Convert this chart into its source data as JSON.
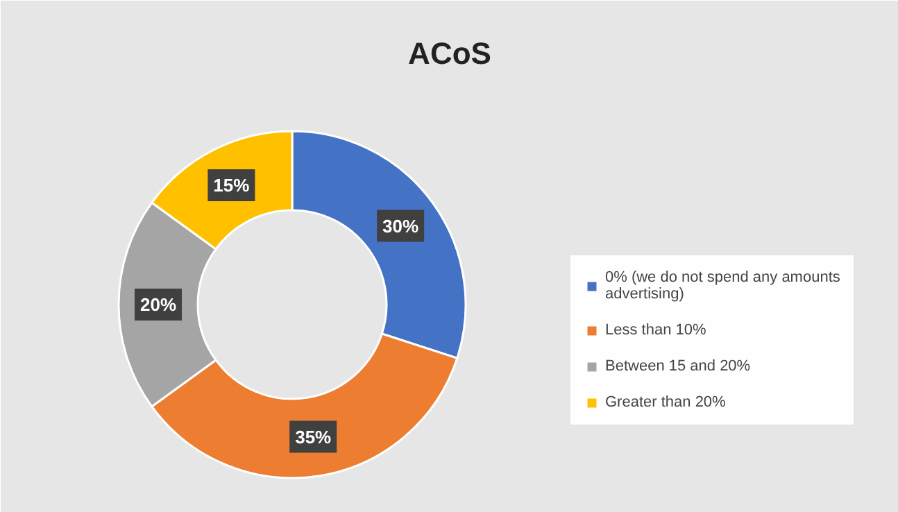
{
  "chart_data": {
    "type": "donut",
    "title": "ACoS",
    "categories": [
      "0% (we do not spend any amounts advertising)",
      "Less than 10%",
      "Between 15 and 20%",
      "Greater than 20%"
    ],
    "values": [
      30,
      35,
      20,
      15
    ],
    "colors": [
      "#4472c4",
      "#ed7d31",
      "#a5a5a5",
      "#ffc000"
    ],
    "value_labels": [
      "30%",
      "35%",
      "20%",
      "15%"
    ],
    "legend": "right"
  }
}
